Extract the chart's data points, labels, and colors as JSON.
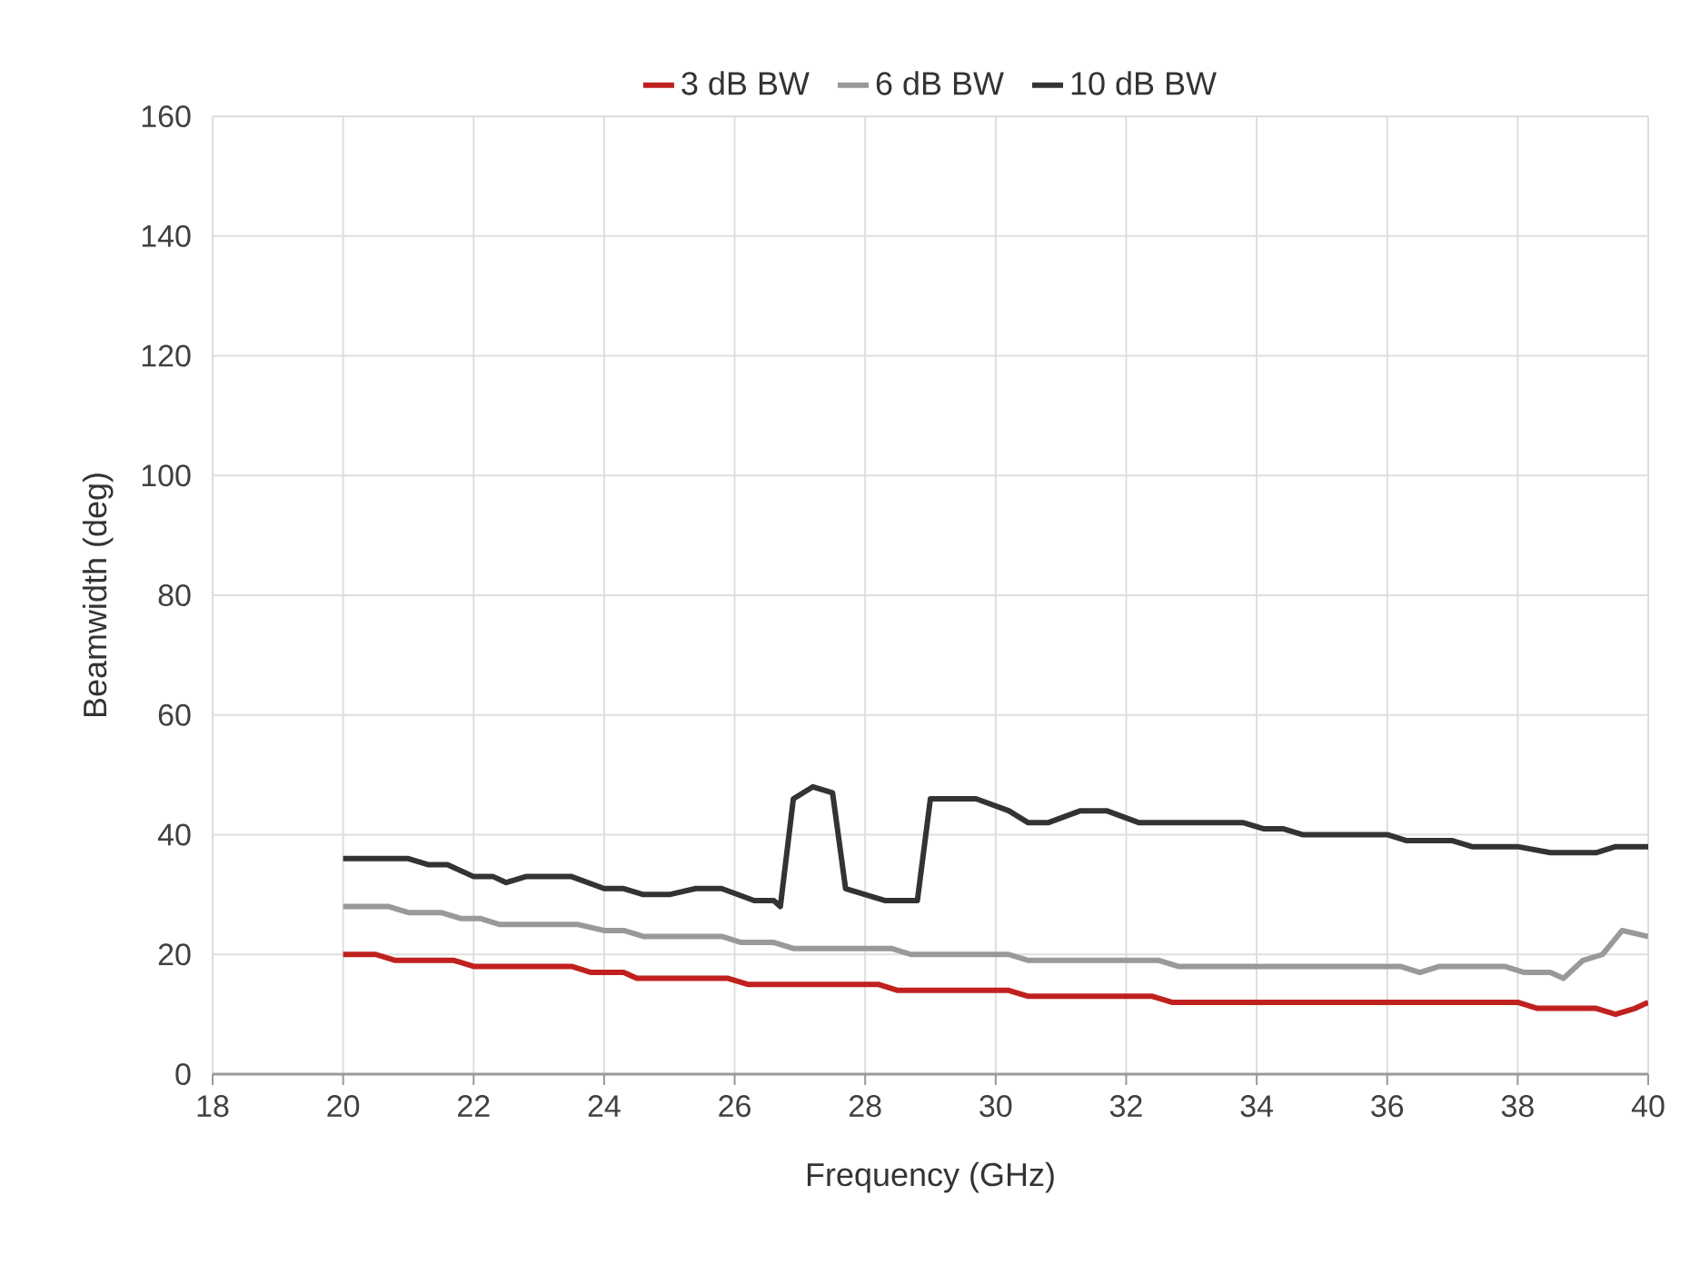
{
  "chart_data": {
    "type": "line",
    "xlabel": "Frequency (GHz)",
    "ylabel": "Beamwidth (deg)",
    "xlim": [
      18,
      40
    ],
    "xticks": [
      18,
      20,
      22,
      24,
      26,
      28,
      30,
      32,
      34,
      36,
      38,
      40
    ],
    "ylim": [
      0,
      160
    ],
    "yticks": [
      0,
      20,
      40,
      60,
      80,
      100,
      120,
      140,
      160
    ],
    "grid": true,
    "legend": "top",
    "marker": "none",
    "line_style": "solid",
    "series": [
      {
        "name": "3 dB BW",
        "color": "#c0211f",
        "x": [
          20,
          20.5,
          20.8,
          21.7,
          22,
          23.5,
          23.8,
          24.3,
          24.5,
          25.9,
          26.2,
          28.2,
          28.5,
          30.2,
          30.5,
          32.4,
          32.7,
          38,
          38.3,
          39.2,
          39.5,
          39.8,
          40
        ],
        "values": [
          20,
          20,
          19,
          19,
          18,
          18,
          17,
          17,
          16,
          16,
          15,
          15,
          14,
          14,
          13,
          13,
          12,
          12,
          11,
          11,
          10,
          11,
          12
        ]
      },
      {
        "name": "6 dB BW",
        "color": "#999999",
        "x": [
          20,
          20.7,
          21,
          21.5,
          21.8,
          22.1,
          22.4,
          23.6,
          24,
          24.3,
          24.6,
          25.8,
          26.1,
          26.6,
          26.9,
          28.4,
          28.7,
          30.2,
          30.5,
          32.5,
          32.8,
          36.2,
          36.5,
          36.8,
          37.8,
          38.1,
          38.5,
          38.7,
          39,
          39.3,
          39.6,
          40
        ],
        "values": [
          28,
          28,
          27,
          27,
          26,
          26,
          25,
          25,
          24,
          24,
          23,
          23,
          22,
          22,
          21,
          21,
          20,
          20,
          19,
          19,
          18,
          18,
          17,
          18,
          18,
          17,
          17,
          16,
          19,
          20,
          24,
          23
        ]
      },
      {
        "name": "10 dB BW",
        "color": "#333333",
        "x": [
          20,
          21,
          21.3,
          21.6,
          22,
          22.3,
          22.5,
          22.8,
          23.5,
          24,
          24.3,
          24.6,
          25,
          25.4,
          25.8,
          26.3,
          26.6,
          26.7,
          26.9,
          27.2,
          27.5,
          27.7,
          28,
          28.3,
          28.8,
          29,
          29.3,
          29.7,
          30.2,
          30.5,
          30.8,
          31.3,
          31.7,
          32.2,
          32.5,
          33.8,
          34.1,
          34.4,
          34.7,
          36,
          36.3,
          37,
          37.3,
          38,
          38.5,
          39.2,
          39.5,
          40
        ],
        "values": [
          36,
          36,
          35,
          35,
          33,
          33,
          32,
          33,
          33,
          31,
          31,
          30,
          30,
          31,
          31,
          29,
          29,
          28,
          46,
          48,
          47,
          31,
          30,
          29,
          29,
          46,
          46,
          46,
          44,
          42,
          42,
          44,
          44,
          42,
          42,
          42,
          41,
          41,
          40,
          40,
          39,
          39,
          38,
          38,
          37,
          37,
          38,
          38
        ]
      }
    ]
  }
}
